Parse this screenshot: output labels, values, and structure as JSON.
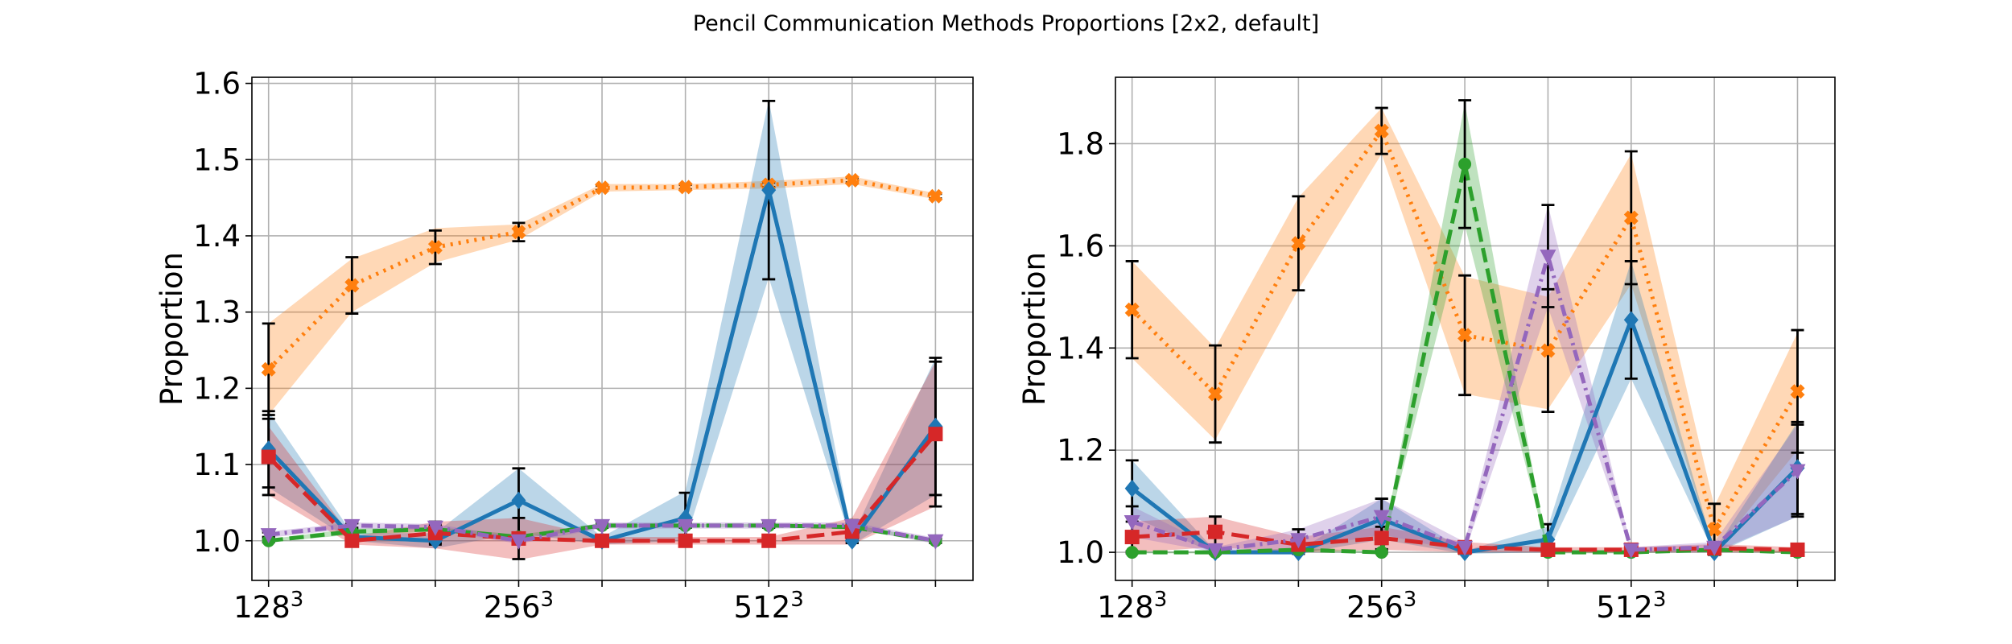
{
  "figure": {
    "title": "Pencil Communication Methods Proportions [2x2, default]"
  },
  "chart_data": [
    {
      "type": "line",
      "ylabel": "Proportion",
      "xlabel": "",
      "x": [
        1,
        2,
        3,
        4,
        5,
        6,
        7,
        8,
        9
      ],
      "x_ticks": [
        {
          "x": 1,
          "label": "128",
          "exp": "3"
        },
        {
          "x": 4,
          "label": "256",
          "exp": "3"
        },
        {
          "x": 7,
          "label": "512",
          "exp": "3"
        }
      ],
      "x_grid": [
        1,
        2,
        3,
        4,
        5,
        6,
        7,
        8,
        9
      ],
      "xlim": [
        0.8,
        9.45
      ],
      "ylim": [
        0.948,
        1.608
      ],
      "yticks": [
        1.0,
        1.1,
        1.2,
        1.3,
        1.4,
        1.5,
        1.6
      ],
      "ytick_labels": [
        "1.0",
        "1.1",
        "1.2",
        "1.3",
        "1.4",
        "1.5",
        "1.6"
      ],
      "grid": true,
      "series": [
        {
          "color": "#ff7f0e",
          "dash": "dotted",
          "marker": "x",
          "values": [
            1.225,
            1.335,
            1.385,
            1.405,
            1.463,
            1.464,
            1.467,
            1.473,
            1.452
          ],
          "band": [
            [
              1.165,
              1.285
            ],
            [
              1.3,
              1.37
            ],
            [
              1.365,
              1.41
            ],
            [
              1.395,
              1.415
            ],
            [
              1.458,
              1.468
            ],
            [
              1.46,
              1.468
            ],
            [
              1.462,
              1.472
            ],
            [
              1.468,
              1.478
            ],
            [
              1.448,
              1.456
            ]
          ],
          "err": [
            0.06,
            0.037,
            0.022,
            0.012,
            0.003,
            0.003,
            0.003,
            0.003,
            0.003
          ]
        },
        {
          "color": "#1f77b4",
          "dash": "solid",
          "marker": "diamond",
          "values": [
            1.12,
            1.005,
            1.0,
            1.053,
            1.0,
            1.03,
            1.46,
            1.0,
            1.15
          ],
          "band": [
            [
              1.07,
              1.17
            ],
            [
              1.0,
              1.01
            ],
            [
              0.99,
              1.01
            ],
            [
              1.01,
              1.095
            ],
            [
              0.995,
              1.005
            ],
            [
              1.0,
              1.065
            ],
            [
              1.345,
              1.578
            ],
            [
              0.995,
              1.005
            ],
            [
              1.06,
              1.24
            ]
          ],
          "err": [
            0.05,
            0.003,
            0.003,
            0.042,
            0.003,
            0.033,
            0.117,
            0.003,
            0.09
          ]
        },
        {
          "color": "#2ca02c",
          "dash": "dashed",
          "marker": "circle",
          "values": [
            1.0,
            1.012,
            1.015,
            1.005,
            1.02,
            1.02,
            1.02,
            1.018,
            1.0
          ],
          "band": [
            [
              0.998,
              1.002
            ],
            [
              1.008,
              1.016
            ],
            [
              1.012,
              1.018
            ],
            [
              1.002,
              1.008
            ],
            [
              1.018,
              1.022
            ],
            [
              1.018,
              1.022
            ],
            [
              1.018,
              1.022
            ],
            [
              1.015,
              1.021
            ],
            [
              0.998,
              1.002
            ]
          ],
          "err": [
            0.002,
            0.002,
            0.002,
            0.002,
            0.002,
            0.002,
            0.002,
            0.002,
            0.002
          ]
        },
        {
          "color": "#d62728",
          "dash": "longdash",
          "marker": "square",
          "values": [
            1.11,
            1.0,
            1.01,
            1.003,
            1.0,
            1.0,
            1.0,
            1.012,
            1.14
          ],
          "band": [
            [
              1.06,
              1.15
            ],
            [
              0.995,
              1.005
            ],
            [
              0.99,
              1.025
            ],
            [
              0.975,
              1.03
            ],
            [
              0.995,
              1.005
            ],
            [
              0.995,
              1.005
            ],
            [
              0.995,
              1.005
            ],
            [
              0.995,
              1.03
            ],
            [
              1.045,
              1.235
            ]
          ],
          "err": [
            0.05,
            0.003,
            0.015,
            0.027,
            0.003,
            0.003,
            0.003,
            0.015,
            0.095
          ]
        },
        {
          "color": "#9467bd",
          "dash": "dashdot",
          "marker": "triangle-down",
          "values": [
            1.008,
            1.02,
            1.018,
            1.0,
            1.02,
            1.02,
            1.02,
            1.02,
            1.0
          ],
          "band": [
            [
              1.004,
              1.012
            ],
            [
              1.016,
              1.024
            ],
            [
              1.014,
              1.022
            ],
            [
              0.996,
              1.004
            ],
            [
              1.016,
              1.024
            ],
            [
              1.016,
              1.024
            ],
            [
              1.016,
              1.024
            ],
            [
              1.016,
              1.024
            ],
            [
              0.996,
              1.004
            ]
          ],
          "err": [
            0.003,
            0.003,
            0.003,
            0.003,
            0.003,
            0.003,
            0.003,
            0.003,
            0.003
          ]
        }
      ]
    },
    {
      "type": "line",
      "ylabel": "Proportion",
      "xlabel": "",
      "x": [
        1,
        2,
        3,
        4,
        5,
        6,
        7,
        8,
        9
      ],
      "x_ticks": [
        {
          "x": 1,
          "label": "128",
          "exp": "3"
        },
        {
          "x": 4,
          "label": "256",
          "exp": "3"
        },
        {
          "x": 7,
          "label": "512",
          "exp": "3"
        }
      ],
      "x_grid": [
        1,
        2,
        3,
        4,
        5,
        6,
        7,
        8,
        9
      ],
      "xlim": [
        0.8,
        9.45
      ],
      "ylim": [
        0.945,
        1.93
      ],
      "yticks": [
        1.0,
        1.2,
        1.4,
        1.6,
        1.8
      ],
      "ytick_labels": [
        "1.0",
        "1.2",
        "1.4",
        "1.6",
        "1.8"
      ],
      "grid": true,
      "series": [
        {
          "color": "#ff7f0e",
          "dash": "dotted",
          "marker": "x",
          "values": [
            1.475,
            1.31,
            1.605,
            1.825,
            1.425,
            1.395,
            1.655,
            1.045,
            1.315
          ],
          "band": [
            [
              1.38,
              1.57
            ],
            [
              1.22,
              1.4
            ],
            [
              1.515,
              1.695
            ],
            [
              1.78,
              1.87
            ],
            [
              1.31,
              1.54
            ],
            [
              1.28,
              1.5
            ],
            [
              1.525,
              1.78
            ],
            [
              1.0,
              1.09
            ],
            [
              1.2,
              1.43
            ]
          ],
          "err": [
            0.095,
            0.095,
            0.092,
            0.045,
            0.117,
            0.12,
            0.13,
            0.05,
            0.12
          ]
        },
        {
          "color": "#1f77b4",
          "dash": "solid",
          "marker": "diamond",
          "values": [
            1.125,
            1.0,
            1.0,
            1.065,
            1.0,
            1.025,
            1.455,
            1.0,
            1.165
          ],
          "band": [
            [
              1.07,
              1.18
            ],
            [
              0.997,
              1.003
            ],
            [
              0.997,
              1.003
            ],
            [
              1.025,
              1.105
            ],
            [
              0.997,
              1.003
            ],
            [
              1.0,
              1.05
            ],
            [
              1.34,
              1.57
            ],
            [
              0.997,
              1.003
            ],
            [
              1.07,
              1.255
            ]
          ],
          "err": [
            0.055,
            0.003,
            0.003,
            0.04,
            0.003,
            0.03,
            0.115,
            0.003,
            0.09
          ]
        },
        {
          "color": "#2ca02c",
          "dash": "dashed",
          "marker": "circle",
          "values": [
            1.0,
            1.0,
            1.005,
            1.0,
            1.76,
            1.0,
            1.0,
            1.005,
            1.0
          ],
          "band": [
            [
              0.998,
              1.002
            ],
            [
              0.998,
              1.002
            ],
            [
              1.002,
              1.008
            ],
            [
              0.998,
              1.002
            ],
            [
              1.64,
              1.88
            ],
            [
              0.998,
              1.002
            ],
            [
              0.998,
              1.002
            ],
            [
              1.002,
              1.008
            ],
            [
              0.998,
              1.002
            ]
          ],
          "err": [
            0.002,
            0.002,
            0.002,
            0.002,
            0.125,
            0.002,
            0.002,
            0.002,
            0.002
          ]
        },
        {
          "color": "#d62728",
          "dash": "longdash",
          "marker": "square",
          "values": [
            1.03,
            1.04,
            1.015,
            1.028,
            1.01,
            1.005,
            1.005,
            1.008,
            1.005
          ],
          "band": [
            [
              1.0,
              1.06
            ],
            [
              1.01,
              1.07
            ],
            [
              1.0,
              1.03
            ],
            [
              1.005,
              1.05
            ],
            [
              1.0,
              1.02
            ],
            [
              1.0,
              1.01
            ],
            [
              1.0,
              1.01
            ],
            [
              1.0,
              1.016
            ],
            [
              1.0,
              1.01
            ]
          ],
          "err": [
            0.03,
            0.03,
            0.015,
            0.022,
            0.008,
            0.004,
            0.004,
            0.006,
            0.004
          ]
        },
        {
          "color": "#9467bd",
          "dash": "dashdot",
          "marker": "triangle-down",
          "values": [
            1.06,
            1.005,
            1.025,
            1.07,
            1.01,
            1.58,
            1.005,
            1.01,
            1.16
          ],
          "band": [
            [
              1.03,
              1.09
            ],
            [
              1.0,
              1.01
            ],
            [
              1.005,
              1.045
            ],
            [
              1.035,
              1.105
            ],
            [
              1.0,
              1.02
            ],
            [
              1.48,
              1.68
            ],
            [
              1.0,
              1.01
            ],
            [
              1.0,
              1.02
            ],
            [
              1.07,
              1.25
            ]
          ],
          "err": [
            0.03,
            0.004,
            0.02,
            0.035,
            0.008,
            0.1,
            0.004,
            0.008,
            0.09
          ]
        }
      ]
    }
  ]
}
